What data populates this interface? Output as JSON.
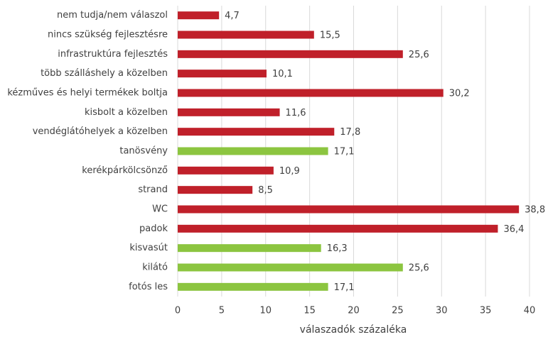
{
  "chart_data": {
    "type": "barh",
    "categories": [
      "nem tudja/nem válaszol",
      "nincs szükség fejlesztésre",
      "infrastruktúra fejlesztés",
      "több szálláshely a közelben",
      "kézműves és helyi termékek boltja",
      "kisbolt a közelben",
      "vendéglátóhelyek a közelben",
      "tanösvény",
      "kerékpárkölcsönző",
      "strand",
      "WC",
      "padok",
      "kisvasút",
      "kilátó",
      "fotós les"
    ],
    "values": [
      4.7,
      15.5,
      25.6,
      10.1,
      30.2,
      11.6,
      17.8,
      17.1,
      10.9,
      8.5,
      38.8,
      36.4,
      16.3,
      25.6,
      17.1
    ],
    "value_labels": [
      "4,7",
      "15,5",
      "25,6",
      "10,1",
      "30,2",
      "11,6",
      "17,8",
      "17,1",
      "10,9",
      "8,5",
      "38,8",
      "36,4",
      "16,3",
      "25,6",
      "17,1"
    ],
    "colors": [
      "#c0202a",
      "#c0202a",
      "#c0202a",
      "#c0202a",
      "#c0202a",
      "#c0202a",
      "#c0202a",
      "#8cc540",
      "#c0202a",
      "#c0202a",
      "#c0202a",
      "#c0202a",
      "#8cc540",
      "#8cc540",
      "#8cc540"
    ],
    "xlabel": "válaszadók százaléka",
    "xlim": [
      0,
      40
    ],
    "xticks": [
      0,
      5,
      10,
      15,
      20,
      25,
      30,
      35,
      40
    ],
    "grid": true
  }
}
